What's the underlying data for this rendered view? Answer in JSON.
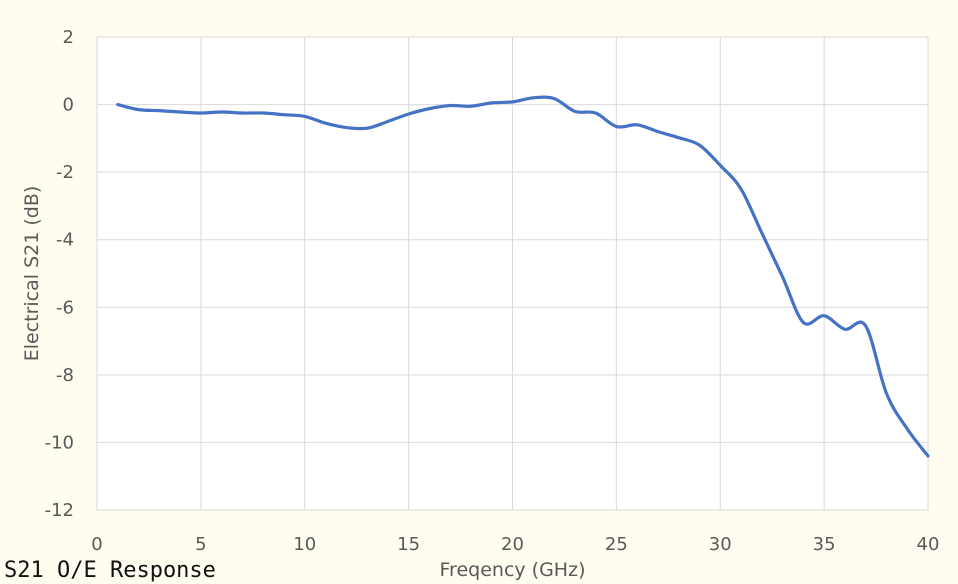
{
  "caption": "S21 O/E Response",
  "colors": {
    "frame_bg": "#fffdf0",
    "plot_bg": "#ffffff",
    "line": "#4472c4",
    "grid": "#d9d9d9",
    "text": "#595959"
  },
  "chart_data": {
    "type": "line",
    "title": "",
    "xlabel": "Freqency (GHz)",
    "ylabel": "Electrical S21 (dB)",
    "xlim": [
      0,
      40
    ],
    "ylim": [
      -12,
      2
    ],
    "xticks": [
      0,
      5,
      10,
      15,
      20,
      25,
      30,
      35,
      40
    ],
    "yticks": [
      -12,
      -10,
      -8,
      -6,
      -4,
      -2,
      0,
      2
    ],
    "grid": true,
    "legend": "none",
    "series": [
      {
        "x": [
          1,
          2,
          3,
          4,
          5,
          6,
          7,
          8,
          9,
          10,
          11,
          12,
          13,
          14,
          15,
          16,
          17,
          18,
          19,
          20,
          21,
          22,
          23,
          24,
          25,
          26,
          27,
          28,
          29,
          30,
          31,
          32,
          33,
          34,
          35,
          36,
          37,
          38,
          39,
          40
        ],
        "y": [
          0.0,
          -0.15,
          -0.18,
          -0.22,
          -0.25,
          -0.22,
          -0.25,
          -0.25,
          -0.3,
          -0.35,
          -0.55,
          -0.68,
          -0.7,
          -0.5,
          -0.28,
          -0.12,
          -0.03,
          -0.05,
          0.05,
          0.08,
          0.2,
          0.18,
          -0.2,
          -0.25,
          -0.65,
          -0.6,
          -0.8,
          -0.98,
          -1.2,
          -1.8,
          -2.5,
          -3.8,
          -5.1,
          -6.45,
          -6.25,
          -6.65,
          -6.55,
          -8.55,
          -9.6,
          -10.4
        ]
      }
    ]
  }
}
